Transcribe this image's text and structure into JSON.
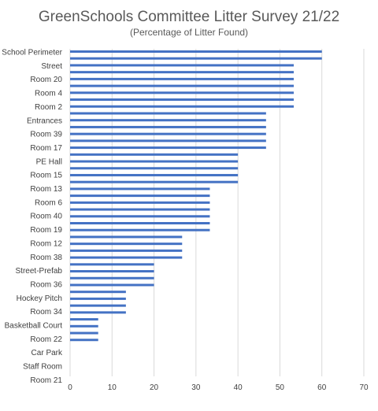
{
  "chart_data": {
    "type": "bar",
    "orientation": "horizontal",
    "title": "GreenSchools Committee Litter Survey 21/22",
    "subtitle": "(Percentage of Litter Found)",
    "xlim": [
      0,
      70
    ],
    "x_ticks": [
      0,
      10,
      20,
      30,
      40,
      50,
      60,
      70
    ],
    "grid": "vertical",
    "color": "#4472C4",
    "labeled_categories": [
      "School Perimeter",
      "Street",
      "Room 20",
      "Room 4",
      "Room 2",
      "Entrances",
      "Room 39",
      "Room 17",
      "PE Hall",
      "Room 15",
      "Room 13",
      "Room 6",
      "Room 40",
      "Room 19",
      "Room 12",
      "Room 38",
      "Street-Prefab",
      "Room 36",
      "Hockey Pitch",
      "Room 34",
      "Basketball Court",
      "Room 22",
      "Car Park",
      "Staff Room",
      "Room 21"
    ],
    "values": [
      60,
      60,
      53.3,
      53.3,
      53.3,
      53.3,
      53.3,
      53.3,
      53.3,
      46.7,
      46.7,
      46.7,
      46.7,
      46.7,
      46.7,
      40,
      40,
      40,
      40,
      40,
      33.3,
      33.3,
      33.3,
      33.3,
      33.3,
      33.3,
      33.3,
      26.7,
      26.7,
      26.7,
      26.7,
      20,
      20,
      20,
      20,
      13.3,
      13.3,
      13.3,
      13.3,
      6.7,
      6.7,
      6.7,
      6.7
    ]
  }
}
